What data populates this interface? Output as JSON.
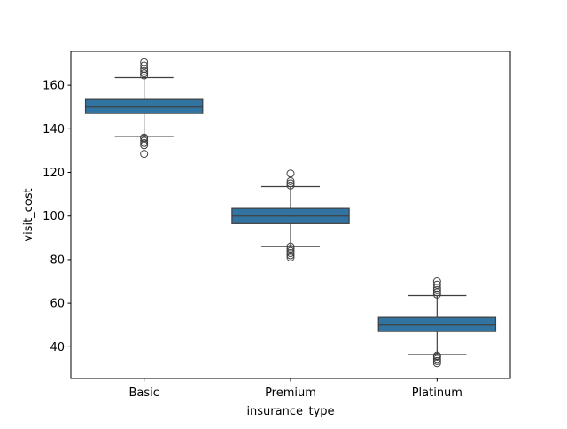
{
  "chart_data": {
    "type": "box",
    "title": "",
    "xlabel": "insurance_type",
    "ylabel": "visit_cost",
    "ylim": [
      25.5,
      175.5
    ],
    "yticks": [
      40,
      60,
      80,
      100,
      120,
      140,
      160
    ],
    "grid": false,
    "categories": [
      "Basic",
      "Premium",
      "Platinum"
    ],
    "series": [
      {
        "category": "Basic",
        "stats": {
          "whisker_low": 136.5,
          "q1": 147.0,
          "median": 150.0,
          "q3": 153.5,
          "whisker_high": 163.5
        },
        "outliers": [
          128.5,
          132.5,
          133.5,
          134.5,
          135.5,
          136.0,
          164.5,
          165.5,
          166.5,
          167.5,
          169.0,
          170.5
        ]
      },
      {
        "category": "Premium",
        "stats": {
          "whisker_low": 86.0,
          "q1": 96.5,
          "median": 100.0,
          "q3": 103.5,
          "whisker_high": 113.5
        },
        "outliers": [
          81.0,
          82.0,
          83.0,
          84.0,
          85.0,
          86.0,
          114.0,
          115.0,
          116.0,
          119.5
        ]
      },
      {
        "category": "Platinum",
        "stats": {
          "whisker_low": 36.5,
          "q1": 47.0,
          "median": 50.0,
          "q3": 53.5,
          "whisker_high": 63.5
        },
        "outliers": [
          32.5,
          33.5,
          34.5,
          35.5,
          36.0,
          64.0,
          65.0,
          66.0,
          67.0,
          68.5,
          70.0
        ]
      }
    ],
    "colors": {
      "box_fill": "#3274a1",
      "line": "#3f3f3f",
      "axis": "#000000",
      "background": "#ffffff"
    }
  }
}
